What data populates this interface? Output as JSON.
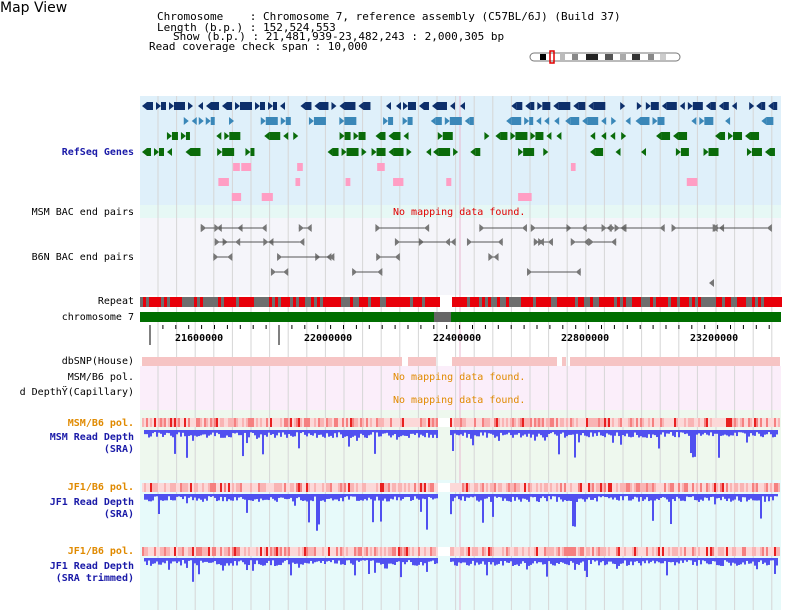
{
  "page": {
    "title": "Map View"
  },
  "header": {
    "line1": "Chromosome    : Chromosome 7, reference assembly (C57BL/6J) (Build 37)",
    "line2": "Length (b.p.) : 152,524,553",
    "line3": "Show (b.p.) : 21,481,939-23,482,243 : 2,000,305 bp",
    "line4": "Read coverage check span : 10,000"
  },
  "tracks": {
    "refseq": "RefSeq Genes",
    "msm_bac": "MSM BAC end pairs",
    "b6n_bac": "B6N BAC end pairs",
    "repeat": "Repeat",
    "chromosome": "chromosome 7",
    "dbsnp": "dbSNP(House)",
    "msm_b6_pol_1": "MSM/B6 pol.",
    "read_depth_cap": "d DepthŸ(Capillary)",
    "msm_b6_pol_2": "MSM/B6 pol.",
    "msm_read_depth_1": "MSM Read Depth",
    "msm_read_depth_2": "(SRA)",
    "jf1_b6_pol_1": "JF1/B6 pol.",
    "jf1_read_depth_1": "JF1 Read Depth",
    "jf1_read_depth_2": "(SRA)",
    "jf1_b6_pol_2": "JF1/B6 pol.",
    "jf1_trim_1": "JF1 Read Depth",
    "jf1_trim_2": "(SRA trimmed)"
  },
  "messages": {
    "msm_bac_nodata": "No mapping data found.",
    "msm_pol_nodata": "No mapping data found.",
    "cap_nodata": "No mapping data found."
  },
  "axis": {
    "ticks": [
      "21600000",
      "22000000",
      "22400000",
      "22800000",
      "23200000"
    ]
  },
  "colors": {
    "gene_dark": "#0d2f6b",
    "gene_mid": "#3a87b8",
    "gene_green": "#0a6b0a",
    "pink": "#ff9ec4",
    "repeat_red": "#e8000a",
    "repeat_gray": "#6e6e6e",
    "chrom_green": "#006e00",
    "nodata_red": "#e00000",
    "nodata_orange": "#e08a00",
    "depth_blue": "#5050f0"
  }
}
